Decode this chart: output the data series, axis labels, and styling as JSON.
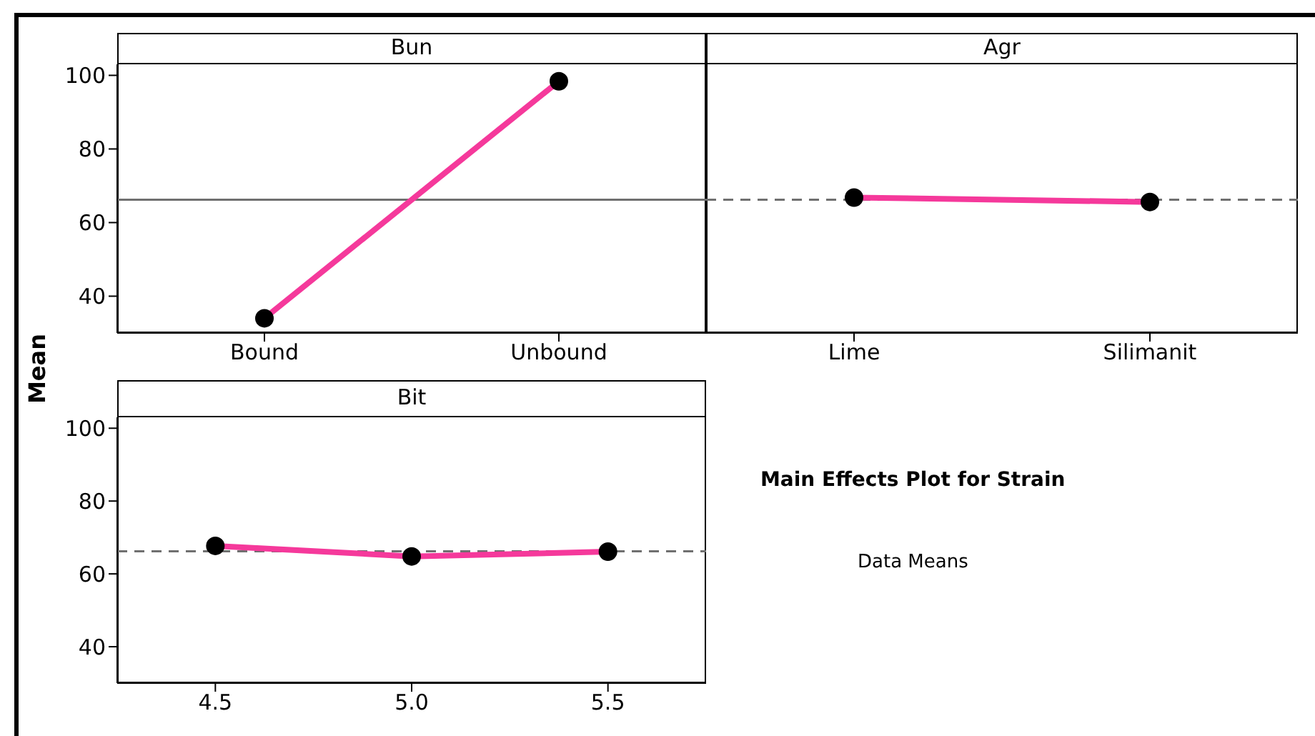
{
  "chart_data": [
    {
      "type": "line",
      "title": "Bun",
      "ylabel": "Mean",
      "categories": [
        "Bound",
        "Unbound"
      ],
      "series": [
        {
          "color": "#f5399b",
          "values": [
            34,
            98.4
          ]
        }
      ],
      "ylim": [
        30,
        103
      ],
      "yticks": [
        40,
        60,
        80,
        100
      ],
      "ref_lines": [
        {
          "axis": "y",
          "value": 66.2,
          "line_style": "solid",
          "color": "#707070"
        }
      ],
      "marker": "circle",
      "grid": false
    },
    {
      "type": "line",
      "title": "Agr",
      "categories": [
        "Lime",
        "Silimanit"
      ],
      "series": [
        {
          "color": "#f5399b",
          "values": [
            66.8,
            65.6
          ]
        }
      ],
      "ylim": [
        30,
        103
      ],
      "yticks": [
        40,
        60,
        80,
        100
      ],
      "tick_labels": "x",
      "ref_lines": [
        {
          "axis": "y",
          "value": 66.2,
          "line_style": "dashed",
          "color": "#707070"
        }
      ],
      "marker": "circle",
      "grid": false
    },
    {
      "type": "line",
      "title": "Bit",
      "x": [
        4.5,
        5.0,
        5.5
      ],
      "series": [
        {
          "color": "#f5399b",
          "values": [
            67.7,
            64.8,
            66.1
          ]
        }
      ],
      "xlim": [
        4.25,
        5.75
      ],
      "xticks": [
        4.5,
        {
          "value": 5,
          "label": "5.0"
        },
        5.5
      ],
      "ylim": [
        30,
        103
      ],
      "yticks": [
        40,
        60,
        80,
        100
      ],
      "ref_lines": [
        {
          "axis": "y",
          "value": 66.2,
          "line_style": "dashed",
          "color": "#707070"
        }
      ],
      "marker": "circle",
      "grid": false
    },
    {
      "type": "other",
      "title": "Main Effects Plot for Strain",
      "subtitle": "Data Means"
    }
  ]
}
